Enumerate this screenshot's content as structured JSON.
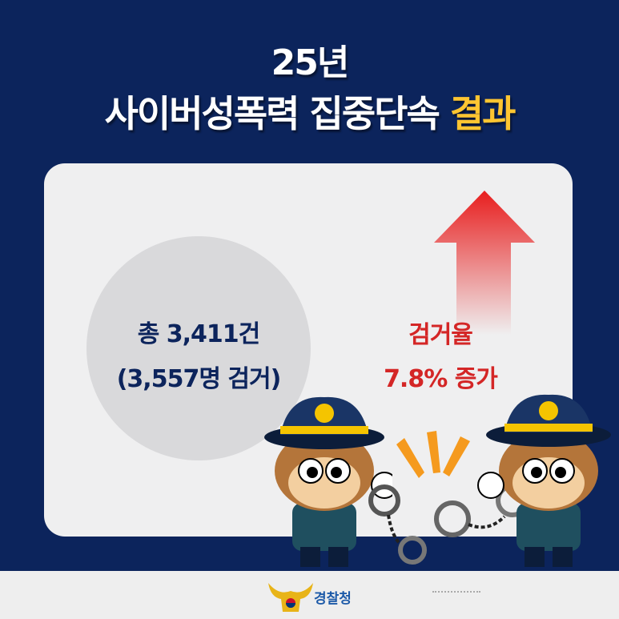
{
  "header": {
    "year_line": "25년",
    "title_main": "사이버성폭력 집중단속",
    "title_highlight": "결과"
  },
  "stats": {
    "total_cases": "총 3,411건",
    "arrested": "(3,557명 검거)",
    "rate_label": "검거율",
    "rate_change": "7.8% 증가"
  },
  "footer": {
    "logo_text": "경찰청"
  },
  "colors": {
    "background": "#0c245c",
    "highlight": "#ffc531",
    "rate_red": "#d42626",
    "card": "#efeff0"
  },
  "icons": [
    "up-arrow-icon",
    "police-character-icon",
    "handcuffs-icon",
    "police-emblem-icon"
  ]
}
